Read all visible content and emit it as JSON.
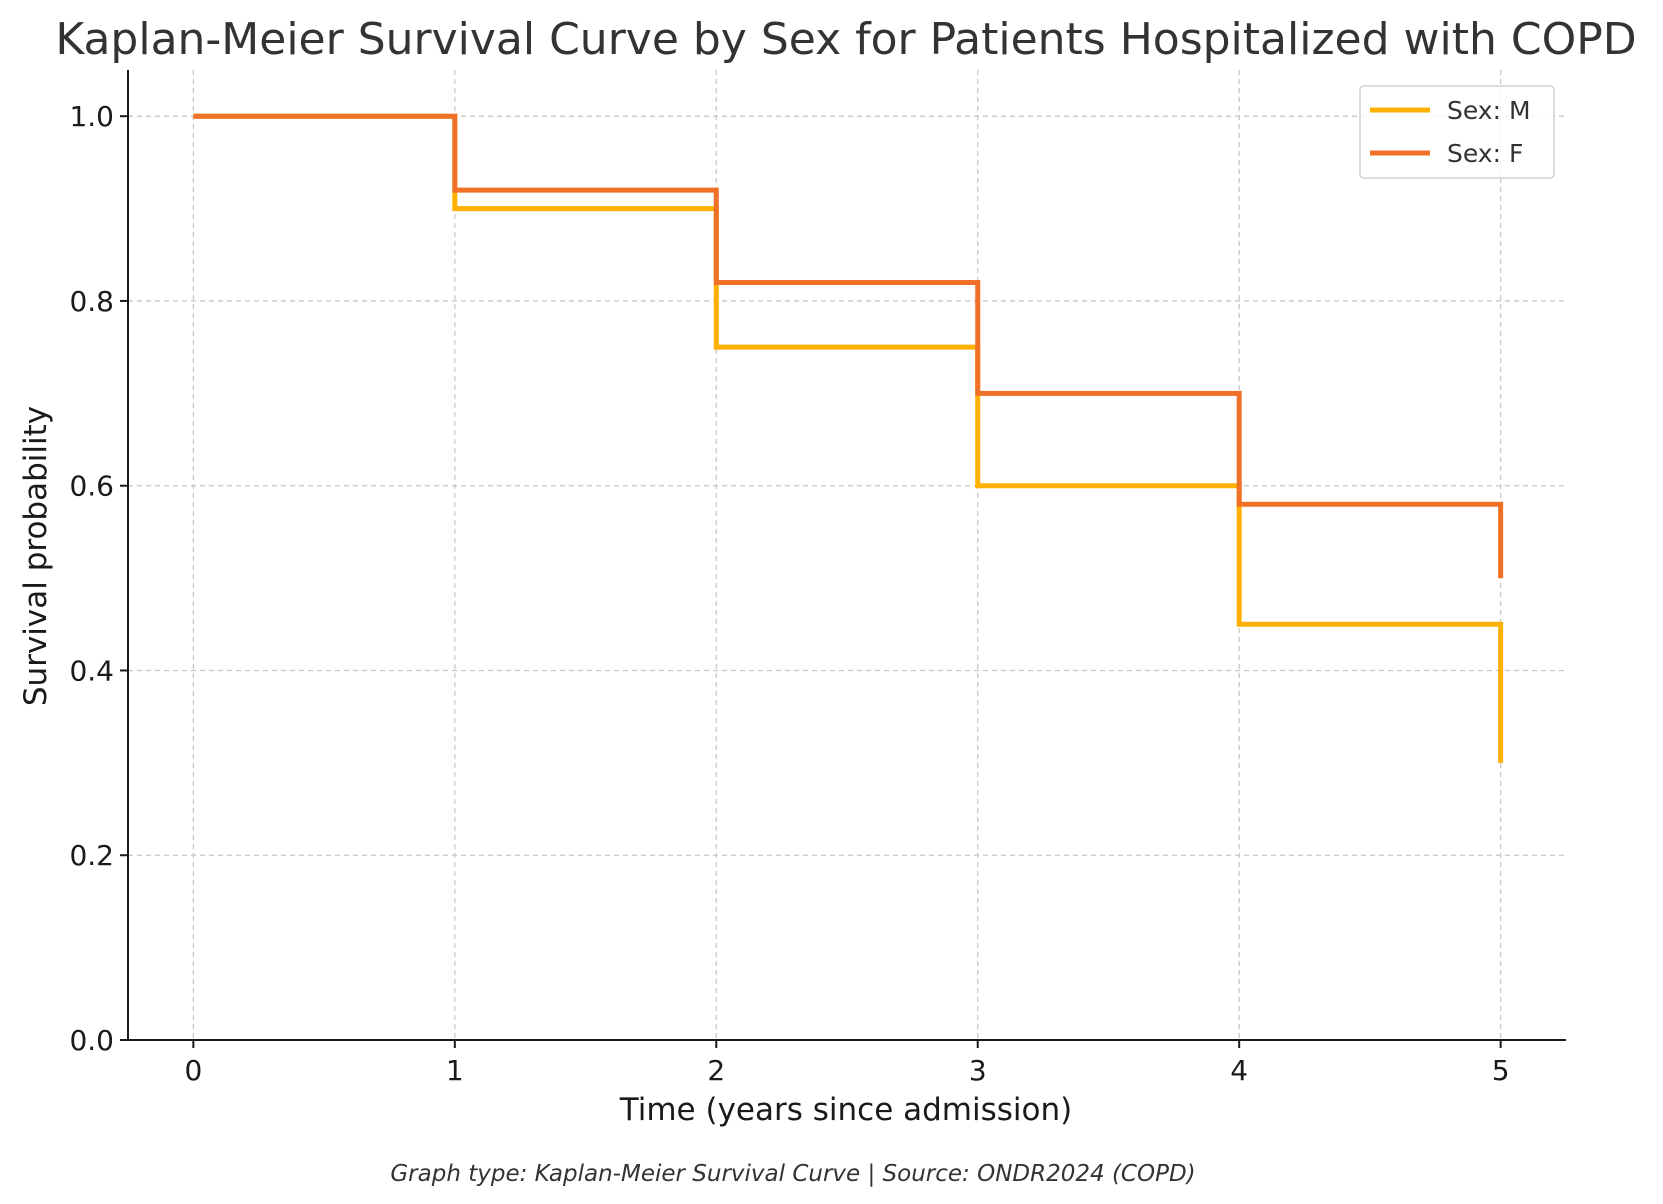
{
  "chart_data": {
    "type": "line",
    "step": true,
    "title": "Kaplan-Meier Survival Curve by Sex for Patients Hospitalized with COPD",
    "xlabel": "Time (years since admission)",
    "ylabel": "Survival probability",
    "xlim": [
      -0.25,
      5.25
    ],
    "ylim": [
      0.0,
      1.05
    ],
    "xticks": [
      0,
      1,
      2,
      3,
      4,
      5
    ],
    "xtick_labels": [
      "0",
      "1",
      "2",
      "3",
      "4",
      "5"
    ],
    "yticks": [
      0.0,
      0.2,
      0.4,
      0.6,
      0.8,
      1.0
    ],
    "ytick_labels": [
      "0.0",
      "0.2",
      "0.4",
      "0.6",
      "0.8",
      "1.0"
    ],
    "grid": true,
    "legend_position": "top-right",
    "series": [
      {
        "name": "Sex: M",
        "color": "#FFB000",
        "x": [
          0,
          1,
          2,
          3,
          4,
          5
        ],
        "y": [
          1.0,
          0.9,
          0.75,
          0.6,
          0.45,
          0.3
        ]
      },
      {
        "name": "Sex: F",
        "color": "#F07028",
        "x": [
          0,
          1,
          2,
          3,
          4,
          5
        ],
        "y": [
          1.0,
          0.92,
          0.82,
          0.7,
          0.58,
          0.5
        ]
      }
    ],
    "caption": "Graph type: Kaplan-Meier Survival Curve | Source: ONDR2024 (COPD)"
  }
}
